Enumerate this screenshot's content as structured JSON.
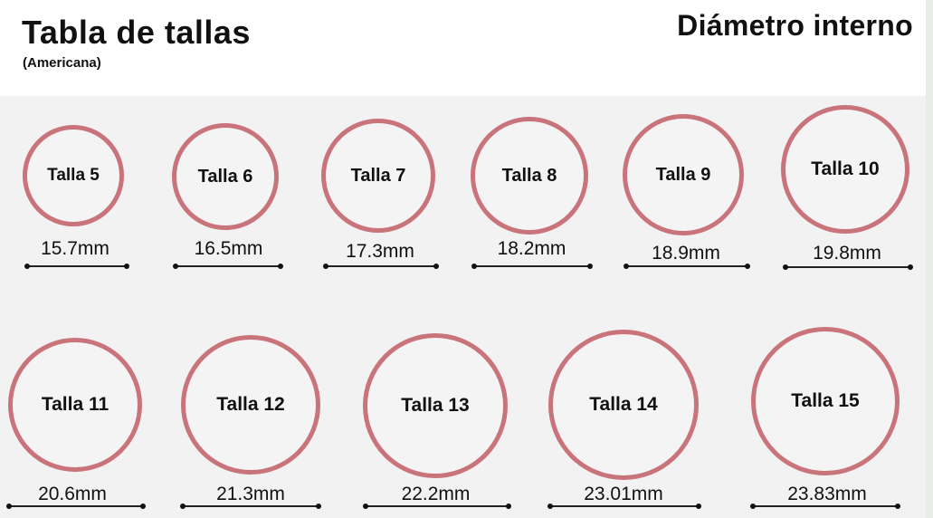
{
  "header": {
    "title": "Tabla de tallas",
    "subtitle": "(Americana)",
    "heading": "Diámetro interno"
  },
  "sizes": [
    {
      "label": "Talla 5",
      "diameter": "15.7mm"
    },
    {
      "label": "Talla 6",
      "diameter": "16.5mm"
    },
    {
      "label": "Talla 7",
      "diameter": "17.3mm"
    },
    {
      "label": "Talla 8",
      "diameter": "18.2mm"
    },
    {
      "label": "Talla 9",
      "diameter": "18.9mm"
    },
    {
      "label": "Talla 10",
      "diameter": "19.8mm"
    },
    {
      "label": "Talla 11",
      "diameter": "20.6mm"
    },
    {
      "label": "Talla 12",
      "diameter": "21.3mm"
    },
    {
      "label": "Talla 13",
      "diameter": "22.2mm"
    },
    {
      "label": "Talla 14",
      "diameter": "23.01mm"
    },
    {
      "label": "Talla 15",
      "diameter": "23.83mm"
    }
  ],
  "colors": {
    "ring": "#c9737b",
    "text": "#111111",
    "background": "#f2f2f2"
  }
}
